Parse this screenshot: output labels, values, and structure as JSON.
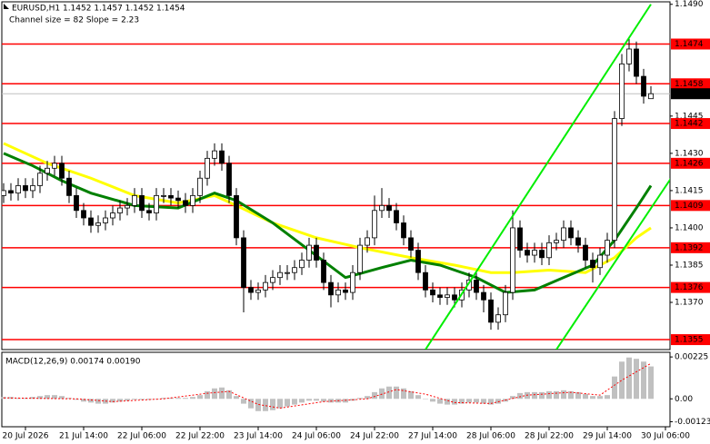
{
  "chart_data": [
    {
      "type": "candlestick",
      "title": "EURUSD,H1  1.1452 1.1457 1.1452 1.1454",
      "subtitle": "Channel size = 82 Slope = 2.23",
      "categories": [
        null,
        null,
        null,
        "20 Jul 2026",
        null,
        null,
        null,
        null,
        null,
        null,
        null,
        "21 Jul 14:00",
        null,
        null,
        null,
        null,
        null,
        null,
        null,
        "22 Jul 06:00",
        null,
        null,
        null,
        null,
        null,
        null,
        null,
        "22 Jul 22:00",
        null,
        null,
        null,
        null,
        null,
        null,
        null,
        "23 Jul 14:00",
        null,
        null,
        null,
        null,
        null,
        null,
        null,
        "24 Jul 06:00",
        null,
        null,
        null,
        null,
        null,
        null,
        null,
        "24 Jul 22:00",
        null,
        null,
        null,
        null,
        null,
        null,
        null,
        "27 Jul 14:00",
        null,
        null,
        null,
        null,
        null,
        null,
        null,
        "28 Jul 06:00",
        null,
        null,
        null,
        null,
        null,
        null,
        null,
        "28 Jul 22:00",
        null,
        null,
        null,
        null,
        null,
        null,
        null,
        "29 Jul 14:00",
        null,
        null,
        null,
        null,
        null,
        null,
        null,
        "30 Jul 06:00"
      ],
      "open": [
        1.1413,
        1.1415,
        1.1414,
        1.1417,
        1.1415,
        1.1417,
        1.1422,
        1.1424,
        1.1426,
        1.142,
        1.1413,
        1.1407,
        1.1404,
        1.1401,
        1.1402,
        1.1404,
        1.1406,
        1.1408,
        1.1409,
        1.1413,
        1.1407,
        1.1406,
        1.1413,
        1.1413,
        1.1412,
        1.1411,
        1.1409,
        1.1413,
        1.142,
        1.1428,
        1.1431,
        1.1426,
        1.1413,
        1.1396,
        1.1376,
        1.1374,
        1.1375,
        1.1378,
        1.138,
        1.1382,
        1.1382,
        1.1384,
        1.1387,
        1.1393,
        1.1387,
        1.1378,
        1.1373,
        1.1375,
        1.1374,
        1.1382,
        1.1393,
        1.1396,
        1.1407,
        1.1409,
        1.1407,
        1.1402,
        1.1396,
        1.1391,
        1.1382,
        1.1375,
        1.1373,
        1.1372,
        1.1373,
        1.1371,
        1.1375,
        1.1379,
        1.1374,
        1.1371,
        1.1362,
        1.1365,
        1.1374,
        1.14,
        1.1391,
        1.1389,
        1.1391,
        1.1388,
        1.1394,
        1.1395,
        1.14,
        1.1396,
        1.1393,
        1.1387,
        1.1384,
        1.1389,
        1.1395,
        1.1444,
        1.1466,
        1.1472,
        1.1461,
        1.1452,
        null,
        null
      ],
      "high": [
        1.1418,
        1.1418,
        1.142,
        1.142,
        1.142,
        1.1425,
        1.1427,
        1.1429,
        1.1429,
        1.1423,
        1.1416,
        1.141,
        1.1407,
        1.1405,
        1.1407,
        1.1409,
        1.1411,
        1.1412,
        1.1416,
        1.1416,
        1.141,
        1.1416,
        1.1416,
        1.1416,
        1.1415,
        1.1414,
        1.1416,
        1.1423,
        1.1431,
        1.1434,
        1.1434,
        1.1429,
        1.1416,
        1.1399,
        1.1379,
        1.1378,
        1.1381,
        1.1383,
        1.1385,
        1.1385,
        1.1387,
        1.139,
        1.1396,
        1.1396,
        1.139,
        1.1381,
        1.1378,
        1.1378,
        1.1385,
        1.1396,
        1.1399,
        1.1413,
        1.1416,
        1.1412,
        1.141,
        1.1405,
        1.1399,
        1.1394,
        1.1385,
        1.1378,
        1.1376,
        1.1376,
        1.1376,
        1.1378,
        1.1382,
        1.1382,
        1.1377,
        1.1374,
        1.1368,
        1.1377,
        1.1407,
        1.1403,
        1.1394,
        1.1394,
        1.1394,
        1.1397,
        1.1398,
        1.1403,
        1.1403,
        1.1399,
        1.1396,
        1.139,
        1.1392,
        1.1398,
        1.1447,
        1.147,
        1.1476,
        1.1475,
        1.1464,
        1.1457,
        null,
        null
      ],
      "low": [
        1.141,
        1.1411,
        1.1411,
        1.1412,
        1.1412,
        1.1414,
        1.1419,
        1.1421,
        1.1417,
        1.141,
        1.1404,
        1.1401,
        1.1398,
        1.1398,
        1.1399,
        1.1401,
        1.1403,
        1.1405,
        1.1406,
        1.1404,
        1.1403,
        1.1403,
        1.141,
        1.1409,
        1.1408,
        1.1406,
        1.1406,
        1.141,
        1.1417,
        1.1425,
        1.1423,
        1.141,
        1.1393,
        1.1366,
        1.1371,
        1.1371,
        1.1372,
        1.1375,
        1.1377,
        1.1379,
        1.1379,
        1.1381,
        1.1384,
        1.1384,
        1.1375,
        1.1368,
        1.137,
        1.1371,
        1.1371,
        1.1379,
        1.139,
        1.1393,
        1.1404,
        1.1404,
        1.1399,
        1.1393,
        1.1388,
        1.1379,
        1.1372,
        1.137,
        1.1369,
        1.1369,
        1.1368,
        1.1368,
        1.1372,
        1.1371,
        1.1366,
        1.1359,
        1.1359,
        1.1362,
        1.1371,
        1.1388,
        1.1386,
        1.1386,
        1.1385,
        1.1385,
        1.1391,
        1.1392,
        1.1393,
        1.139,
        1.1384,
        1.1378,
        1.1381,
        1.1386,
        1.1392,
        1.1441,
        1.1463,
        1.1458,
        1.145,
        1.1452,
        null,
        null
      ],
      "close": [
        1.1415,
        1.1414,
        1.1417,
        1.1415,
        1.1417,
        1.1422,
        1.1424,
        1.1426,
        1.142,
        1.1413,
        1.1407,
        1.1404,
        1.1401,
        1.1402,
        1.1404,
        1.1406,
        1.1408,
        1.1409,
        1.1413,
        1.1407,
        1.1406,
        1.1413,
        1.1413,
        1.1412,
        1.1411,
        1.1409,
        1.1413,
        1.142,
        1.1428,
        1.1431,
        1.1426,
        1.1413,
        1.1396,
        1.1376,
        1.1374,
        1.1375,
        1.1378,
        1.138,
        1.1382,
        1.1382,
        1.1384,
        1.1387,
        1.1393,
        1.1387,
        1.1378,
        1.1373,
        1.1375,
        1.1374,
        1.1382,
        1.1393,
        1.1396,
        1.1407,
        1.1409,
        1.1407,
        1.1402,
        1.1396,
        1.1391,
        1.1382,
        1.1375,
        1.1373,
        1.1372,
        1.1373,
        1.1371,
        1.1375,
        1.1379,
        1.1374,
        1.1371,
        1.1362,
        1.1365,
        1.1374,
        1.14,
        1.1391,
        1.1389,
        1.1391,
        1.1388,
        1.1394,
        1.1395,
        1.14,
        1.1396,
        1.1393,
        1.1387,
        1.1384,
        1.1389,
        1.1395,
        1.1444,
        1.1466,
        1.1472,
        1.1461,
        1.1453,
        1.1454,
        null,
        null
      ],
      "bull_color": "#ffffff",
      "bear_color": "#000000",
      "ylim": [
        1.1351,
        1.1491
      ],
      "yticks": [
        {
          "value": 1.149,
          "label": "1.1490"
        },
        1.1445,
        {
          "value": 1.143,
          "label": "1.1430"
        },
        1.1415,
        {
          "value": 1.14,
          "label": "1.1400"
        },
        1.1385,
        {
          "value": 1.137,
          "label": "1.1370"
        }
      ],
      "levels": {
        "color": "#ff0000",
        "values": [
          1.1474,
          1.1458,
          1.1442,
          1.1426,
          1.1409,
          1.1392,
          1.1376,
          1.1355
        ]
      },
      "current_price": {
        "color": "#000000",
        "value": 1.1454
      },
      "moving_averages": [
        {
          "color": "#ffff00",
          "x": [
            0,
            6,
            12,
            18,
            24,
            29,
            32,
            37,
            43,
            49,
            56,
            62,
            67,
            70,
            75,
            80,
            84,
            87,
            89
          ],
          "values": [
            1.1434,
            1.1426,
            1.142,
            1.1413,
            1.141,
            1.1413,
            1.1409,
            1.1402,
            1.1396,
            1.1392,
            1.1388,
            1.1385,
            1.1382,
            1.1382,
            1.1383,
            1.1382,
            1.1388,
            1.1396,
            1.14
          ]
        },
        {
          "color": "#008000",
          "x": [
            0,
            4,
            8,
            12,
            18,
            24,
            29,
            32,
            37,
            42,
            47,
            52,
            56,
            60,
            65,
            69,
            73,
            77,
            81,
            84,
            87,
            89
          ],
          "values": [
            1.143,
            1.1425,
            1.1419,
            1.1414,
            1.1409,
            1.1408,
            1.1414,
            1.1411,
            1.1402,
            1.1391,
            1.138,
            1.1384,
            1.1387,
            1.1385,
            1.138,
            1.1374,
            1.1375,
            1.138,
            1.1385,
            1.1395,
            1.1408,
            1.1417
          ]
        }
      ],
      "channel": {
        "color": "#00ee00",
        "lines": [
          {
            "x": [
              58,
              89
            ],
            "values": [
              1.1351,
              1.149
            ]
          },
          {
            "x": [
              76,
              92
            ],
            "values": [
              1.1351,
              1.1421
            ]
          }
        ]
      }
    },
    {
      "type": "bar",
      "title": "MACD(12,26,9) 0.00174 0.00190",
      "values": [
        0.0001,
        0.0001,
        5e-05,
        5e-05,
        0.0001,
        0.00015,
        0.0002,
        0.0002,
        0.00015,
        5e-05,
        -5e-05,
        -0.00015,
        -0.0002,
        -0.00026,
        -0.00026,
        -0.0002,
        -0.00015,
        -0.0001,
        -5e-05,
        -5e-05,
        -5e-05,
        0,
        5e-05,
        5e-05,
        5e-05,
        5e-05,
        0.0001,
        0.0002,
        0.00041,
        0.00056,
        0.00061,
        0.00046,
        0.00015,
        -0.00026,
        -0.00051,
        -0.00066,
        -0.00066,
        -0.00061,
        -0.00051,
        -0.00041,
        -0.00031,
        -0.0002,
        -0.0001,
        -0.0001,
        -0.00015,
        -0.0002,
        -0.0002,
        -0.0002,
        -0.0001,
        5e-05,
        0.00015,
        0.00036,
        0.00056,
        0.00066,
        0.00066,
        0.00056,
        0.00041,
        0.0002,
        0,
        -0.00015,
        -0.00026,
        -0.00031,
        -0.00031,
        -0.00026,
        -0.0002,
        -0.0002,
        -0.00026,
        -0.00031,
        -0.00026,
        -0.00015,
        0.00015,
        0.00031,
        0.00036,
        0.00036,
        0.00036,
        0.00041,
        0.00041,
        0.00046,
        0.00041,
        0.00036,
        0.00026,
        0.00015,
        0.00015,
        0.0002,
        0.0012,
        0.002,
        0.00222,
        0.00215,
        0.002,
        0.00174,
        null,
        null
      ],
      "color": "#c0c0c0",
      "signal": {
        "color": "#ff0000",
        "x": [
          0,
          10,
          15,
          22,
          28,
          31,
          35,
          38,
          44,
          50,
          54,
          58,
          62,
          67,
          72,
          78,
          82,
          85,
          89
        ],
        "values": [
          5e-05,
          0,
          -0.00015,
          0,
          0.0003,
          0.0004,
          -0.0003,
          -0.0005,
          -0.00015,
          0,
          0.0005,
          0.00025,
          -0.0002,
          -0.00025,
          0.0002,
          0.00035,
          0.0002,
          0.001,
          0.0019
        ]
      },
      "ylim": [
        -0.0015,
        0.0025
      ],
      "yticks": [
        0.00225,
        {
          "value": 0,
          "label": "0.00"
        },
        -0.00123
      ]
    }
  ]
}
